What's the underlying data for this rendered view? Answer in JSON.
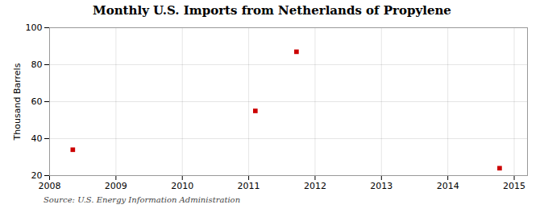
{
  "chart_data": {
    "type": "scatter",
    "title": "Monthly U.S. Imports from Netherlands of Propylene",
    "ylabel": "Thousand Barrels",
    "source": "Source: U.S. Energy Information Administration",
    "x": [
      2008.35,
      2011.1,
      2011.72,
      2014.78
    ],
    "values": [
      34,
      55,
      87,
      24
    ],
    "color": "#cc0000",
    "marker": "square",
    "xlim": [
      2008,
      2015.2
    ],
    "xticks": [
      2008,
      2009,
      2010,
      2011,
      2012,
      2013,
      2014,
      2015
    ],
    "ylim": [
      20,
      100
    ],
    "yticks": [
      20,
      40,
      60,
      80,
      100
    ],
    "grid": true
  }
}
